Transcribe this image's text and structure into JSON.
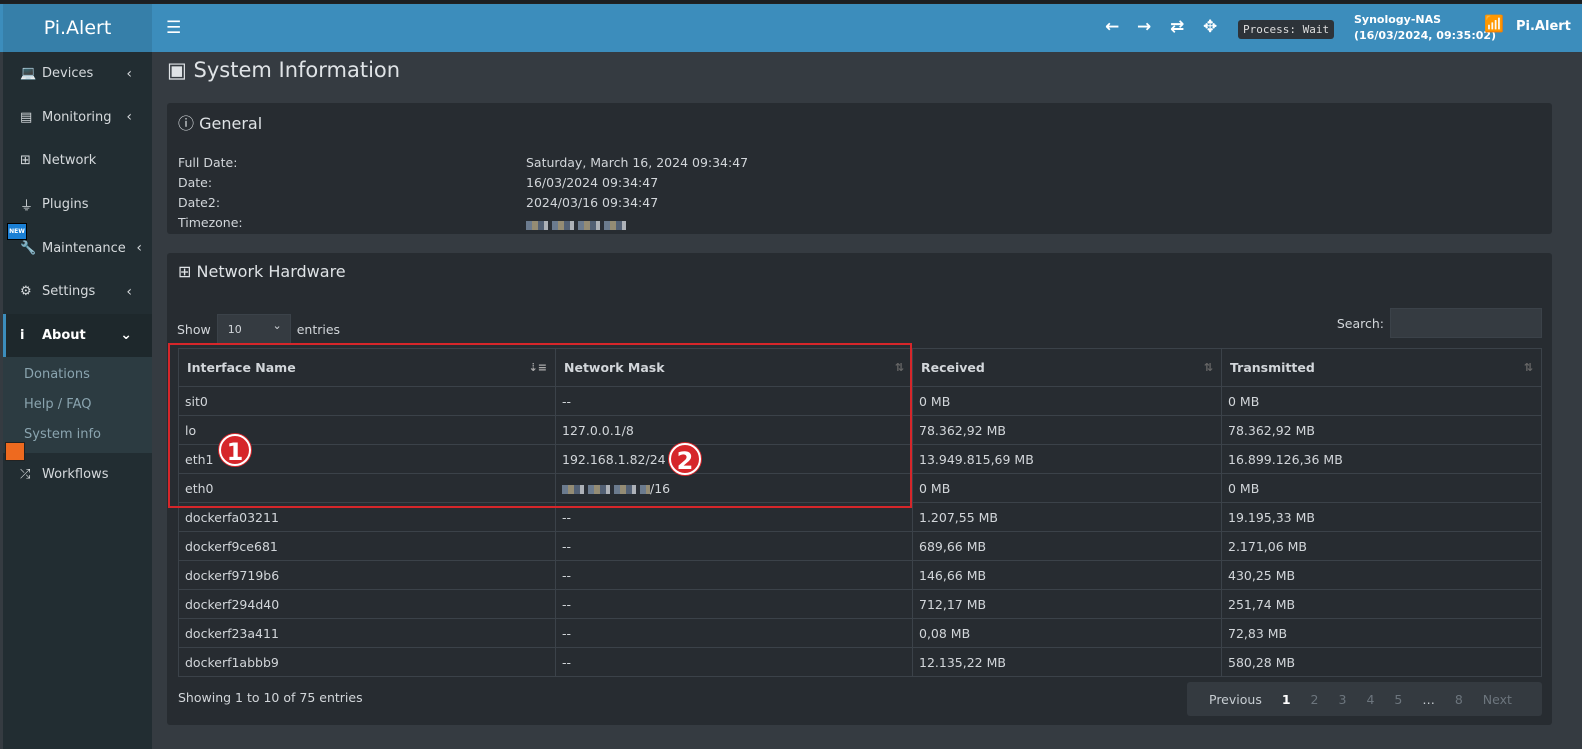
{
  "app": {
    "logo": "Pi.Alert",
    "brand": "Pi.Alert",
    "process": "Process: Wait",
    "host": "Synology-NAS",
    "host_time": "(16/03/2024, 09:35:02)"
  },
  "topbar": {
    "icons": [
      "arrow-left-icon",
      "arrow-right-icon",
      "refresh-icon",
      "move-icon",
      "router-icon"
    ]
  },
  "sidebar": {
    "items": [
      {
        "label": "Devices",
        "icon": "laptop-icon"
      },
      {
        "label": "Monitoring",
        "icon": "chart-icon"
      },
      {
        "label": "Network",
        "icon": "sitemap-icon"
      },
      {
        "label": "Plugins",
        "icon": "plug-icon"
      },
      {
        "label": "Maintenance",
        "icon": "wrench-icon",
        "badge": "NEW"
      },
      {
        "label": "Settings",
        "icon": "gear-icon"
      },
      {
        "label": "About",
        "icon": "info-icon"
      },
      {
        "label": "Workflows",
        "icon": "shuffle-icon"
      }
    ],
    "about_sub": [
      "Donations",
      "Help / FAQ",
      "System info"
    ]
  },
  "page": {
    "title": "System Information"
  },
  "general": {
    "title": "General",
    "rows": [
      {
        "label": "Full Date:",
        "value": "Saturday, March 16, 2024 09:34:47"
      },
      {
        "label": "Date:",
        "value": "16/03/2024 09:34:47"
      },
      {
        "label": "Date2:",
        "value": "2024/03/16 09:34:47"
      },
      {
        "label": "Timezone:",
        "value": ""
      }
    ]
  },
  "network": {
    "title": "Network Hardware",
    "show": "Show",
    "page_size": "10",
    "entries": "entries",
    "search_label": "Search:",
    "columns": [
      "Interface Name",
      "Network Mask",
      "Received",
      "Transmitted"
    ],
    "rows": [
      [
        "sit0",
        "--",
        "0 MB",
        "0 MB"
      ],
      [
        "lo",
        "127.0.0.1/8",
        "78.362,92 MB",
        "78.362,92 MB"
      ],
      [
        "eth1",
        "192.168.1.82/24",
        "13.949.815,69 MB",
        "16.899.126,36 MB"
      ],
      [
        "eth0",
        "/16",
        "0 MB",
        "0 MB"
      ],
      [
        "dockerfa03211",
        "--",
        "1.207,55 MB",
        "19.195,33 MB"
      ],
      [
        "dockerf9ce681",
        "--",
        "689,66 MB",
        "2.171,06 MB"
      ],
      [
        "dockerf9719b6",
        "--",
        "146,66 MB",
        "430,25 MB"
      ],
      [
        "dockerf294d40",
        "--",
        "712,17 MB",
        "251,74 MB"
      ],
      [
        "dockerf23a411",
        "--",
        "0,08 MB",
        "72,83 MB"
      ],
      [
        "dockerf1abbb9",
        "--",
        "12.135,22 MB",
        "580,28 MB"
      ]
    ],
    "info": "Showing 1 to 10 of 75 entries",
    "pager": {
      "previous": "Previous",
      "pages": [
        "1",
        "2",
        "3",
        "4",
        "5",
        "…",
        "8"
      ],
      "next": "Next",
      "current": "1"
    }
  },
  "annotations": [
    "1",
    "2"
  ],
  "colors": {
    "topbar": "#3c8dbc",
    "sidebar": "#222d32",
    "highlight": "#d6262a"
  }
}
